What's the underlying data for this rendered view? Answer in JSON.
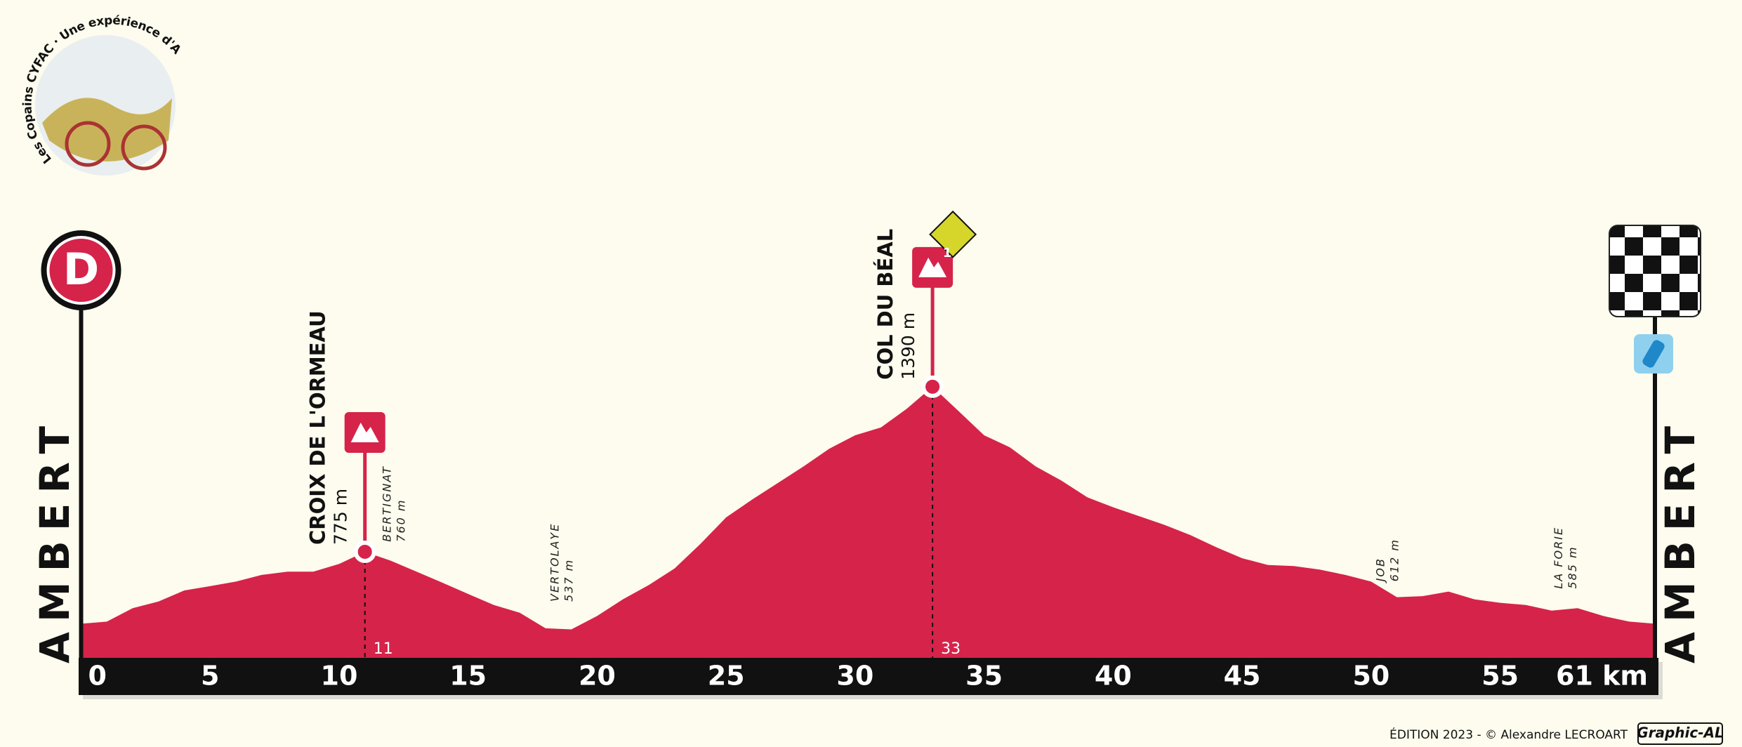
{
  "chart_data": {
    "type": "area",
    "logo": "Les Copains CYFAC · Une expérience d'Auvergne absolue",
    "start_badge": "D",
    "start": "AMBERT",
    "finish": "AMBERT",
    "color": "#d6234a",
    "x": [
      0,
      1,
      2,
      3,
      4,
      5,
      6,
      7,
      8,
      9,
      10,
      11,
      12,
      13,
      14,
      15,
      16,
      17,
      18,
      19,
      20,
      21,
      22,
      23,
      24,
      25,
      26,
      27,
      28,
      29,
      30,
      31,
      32,
      33,
      34,
      35,
      36,
      37,
      38,
      39,
      40,
      41,
      42,
      43,
      44,
      45,
      46,
      47,
      48,
      49,
      50,
      51,
      52,
      53,
      54,
      55,
      56,
      57,
      58,
      59,
      60,
      61
    ],
    "values": [
      507,
      515,
      565,
      590,
      631,
      647,
      664,
      689,
      701,
      701,
      730,
      775,
      742,
      701,
      660,
      618,
      577,
      548,
      490,
      486,
      536,
      598,
      651,
      713,
      804,
      903,
      969,
      1031,
      1093,
      1159,
      1209,
      1238,
      1308,
      1390,
      1300,
      1209,
      1164,
      1093,
      1040,
      978,
      941,
      908,
      875,
      837,
      792,
      751,
      726,
      722,
      709,
      689,
      664,
      606,
      610,
      627,
      598,
      585,
      577,
      556,
      565,
      536,
      515,
      507
    ],
    "xlim": [
      0,
      61
    ],
    "xticks": [
      0,
      5,
      10,
      15,
      20,
      25,
      30,
      35,
      40,
      45,
      50,
      55,
      {
        "value": 61,
        "label": "61 km"
      }
    ],
    "ylim": [
      380,
      1400
    ],
    "climbs": [
      {
        "name": "CROIX DE L'ORMEAU",
        "elevation": {
          "value": 775,
          "label": "775 m"
        },
        "km": 11
      },
      {
        "name": "COL DU BÉAL",
        "elevation": {
          "value": 1390,
          "label": "1390 m"
        },
        "km": 33,
        "category": 1
      }
    ],
    "places": [
      {
        "name": "BERTIGNAT",
        "elevation": {
          "value": 760,
          "label": "760 m"
        },
        "km": 12.1
      },
      {
        "name": "VERTOLAYE",
        "elevation": {
          "value": 537,
          "label": "537 m"
        },
        "km": 18.6
      },
      {
        "name": "JOB",
        "elevation": {
          "value": 612,
          "label": "612 m"
        },
        "km": 50.6
      },
      {
        "name": "LA FORIE",
        "elevation": {
          "value": 585,
          "label": "585 m"
        },
        "km": 57.5
      }
    ],
    "footer": "ÉDITION 2023 - © Alexandre LECROART",
    "brand": "Graphic-AL"
  }
}
